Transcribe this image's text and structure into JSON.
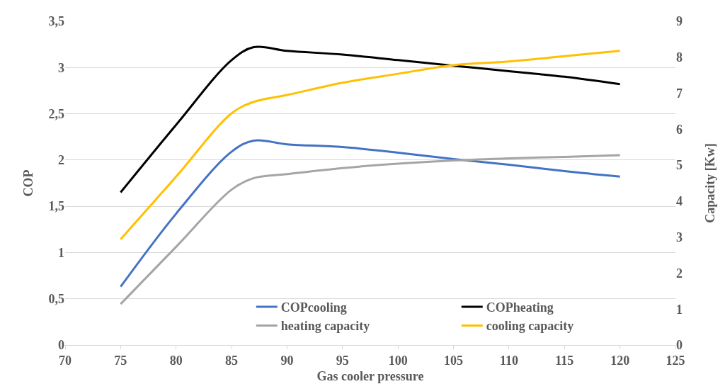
{
  "chart_data": {
    "type": "line",
    "xlabel": "Gas cooler pressure",
    "ylabel": "COP",
    "y2label": "Capacity [Kw]",
    "x": [
      75,
      80,
      85,
      87,
      90,
      95,
      100,
      105,
      110,
      115,
      120
    ],
    "series": [
      {
        "name": "COPcooling",
        "color": "#4472c4",
        "values": [
          0.63,
          1.42,
          2.09,
          2.21,
          2.17,
          2.14,
          2.08,
          2.01,
          1.95,
          1.88,
          1.82
        ]
      },
      {
        "name": "COPheating",
        "color": "#000000",
        "values": [
          1.65,
          2.38,
          3.08,
          3.22,
          3.18,
          3.14,
          3.08,
          3.02,
          2.96,
          2.9,
          2.82
        ]
      },
      {
        "name": "heating capacity",
        "color": "#a5a5a5",
        "axis": "y2",
        "values": [
          1.14,
          2.73,
          4.32,
          4.64,
          4.75,
          4.92,
          5.04,
          5.13,
          5.19,
          5.23,
          5.28
        ]
      },
      {
        "name": "cooling capacity",
        "color": "#ffc000",
        "axis": "y2",
        "values": [
          2.94,
          4.68,
          6.44,
          6.76,
          6.95,
          7.29,
          7.54,
          7.78,
          7.88,
          8.03,
          8.18
        ]
      }
    ],
    "xlim": [
      70,
      125
    ],
    "xticks": [
      70,
      75,
      80,
      85,
      90,
      95,
      100,
      105,
      110,
      115,
      120,
      125
    ],
    "ylim": [
      0,
      3.5
    ],
    "yticks": [
      0,
      {
        "value": 0.5,
        "label": "0,5"
      },
      1,
      {
        "value": 1.5,
        "label": "1,5"
      },
      2,
      {
        "value": 2.5,
        "label": "2,5"
      },
      3,
      {
        "value": 3.5,
        "label": "3,5"
      }
    ],
    "y2lim": [
      0,
      9
    ],
    "y2ticks": [
      0,
      1,
      2,
      3,
      4,
      5,
      6,
      7,
      8,
      9
    ],
    "grid": "y",
    "legend": "bottom right",
    "marker": "none",
    "line_style": "solid"
  }
}
